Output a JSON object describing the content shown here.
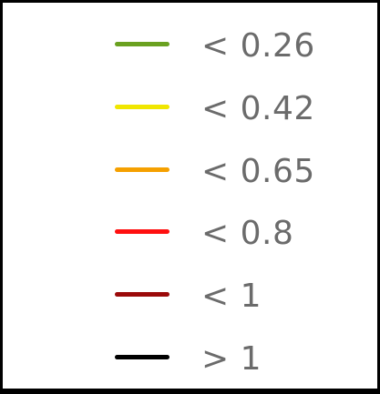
{
  "legend": {
    "items": [
      {
        "label": "< 0.26",
        "color": "#6aa120"
      },
      {
        "label": "< 0.42",
        "color": "#f0e600"
      },
      {
        "label": "< 0.65",
        "color": "#f5a000"
      },
      {
        "label": "< 0.8",
        "color": "#ff1010"
      },
      {
        "label": "< 1",
        "color": "#9b0a0a"
      },
      {
        "label": "> 1",
        "color": "#000000"
      }
    ]
  }
}
